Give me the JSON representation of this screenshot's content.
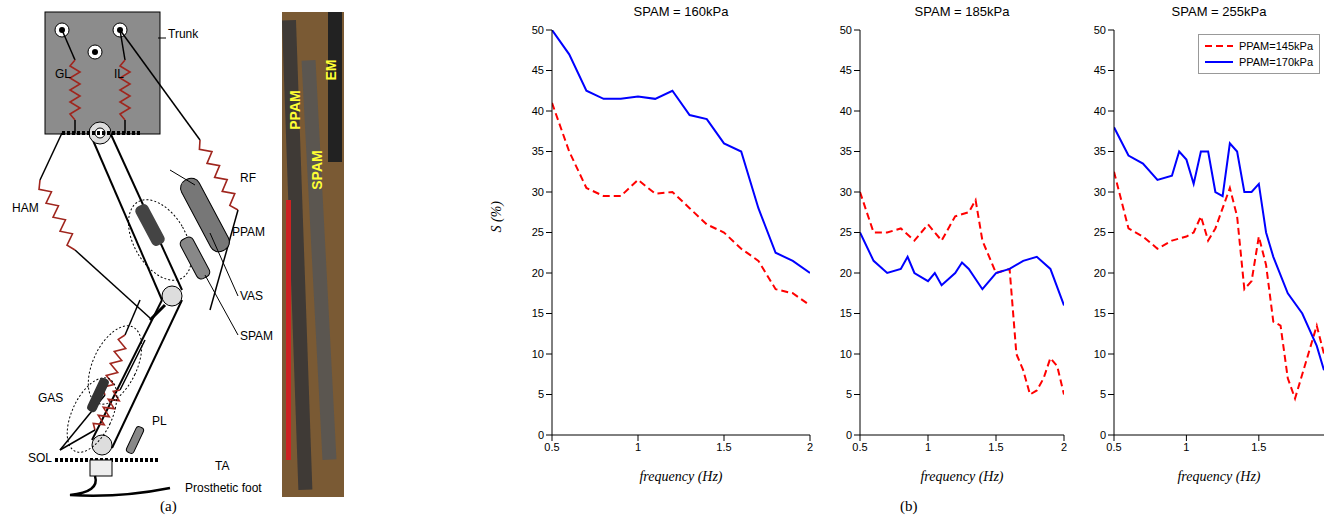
{
  "figure": {
    "panel_a_label": "(a)",
    "panel_b_label": "(b)"
  },
  "diagram": {
    "schematic_labels": [
      "Trunk",
      "GL",
      "IL",
      "RF",
      "HAM",
      "PPAM",
      "VAS",
      "SPAM",
      "GAS",
      "PL",
      "SOL",
      "TA",
      "Prosthetic foot"
    ],
    "photo_labels": [
      "PPAM",
      "SPAM",
      "EM"
    ]
  },
  "chart_data": [
    {
      "type": "line",
      "title": "SPAM = 160kPa",
      "xlabel": "frequency (Hz)",
      "ylabel": "S (%)",
      "xlim": [
        0.5,
        2
      ],
      "xticks": [
        0.5,
        1,
        1.5,
        2
      ],
      "ylim": [
        0,
        50
      ],
      "yticks": [
        0,
        5,
        10,
        15,
        20,
        25,
        30,
        35,
        40,
        45,
        50
      ],
      "grid": false,
      "series": [
        {
          "name": "PPAM=145kPa",
          "color": "#ff0000",
          "line_style": "dashed",
          "x": [
            0.5,
            0.6,
            0.7,
            0.8,
            0.9,
            1.0,
            1.1,
            1.2,
            1.3,
            1.4,
            1.5,
            1.6,
            1.7,
            1.8,
            1.9,
            2.0
          ],
          "values": [
            41,
            35,
            30.5,
            29.5,
            29.5,
            31.5,
            29.8,
            30,
            28,
            26,
            25,
            23,
            21.5,
            18,
            17.5,
            16
          ]
        },
        {
          "name": "PPAM=170kPa",
          "color": "#0000ff",
          "line_style": "solid",
          "x": [
            0.5,
            0.6,
            0.7,
            0.8,
            0.9,
            1.0,
            1.1,
            1.2,
            1.3,
            1.4,
            1.5,
            1.6,
            1.7,
            1.8,
            1.9,
            2.0
          ],
          "values": [
            50,
            47,
            42.5,
            41.5,
            41.5,
            41.8,
            41.5,
            42.5,
            39.5,
            39,
            36,
            35,
            28,
            22.5,
            21.5,
            20
          ]
        }
      ]
    },
    {
      "type": "line",
      "title": "SPAM = 185kPa",
      "xlabel": "frequency (Hz)",
      "xlim": [
        0.5,
        2
      ],
      "xticks": [
        0.5,
        1,
        1.5,
        2
      ],
      "ylim": [
        0,
        50
      ],
      "yticks": [
        0,
        5,
        10,
        15,
        20,
        25,
        30,
        35,
        40,
        45,
        50
      ],
      "grid": false,
      "series": [
        {
          "name": "PPAM=145kPa",
          "color": "#ff0000",
          "line_style": "dashed",
          "x": [
            0.5,
            0.6,
            0.7,
            0.8,
            0.9,
            1.0,
            1.1,
            1.2,
            1.3,
            1.35,
            1.4,
            1.5,
            1.6,
            1.65,
            1.7,
            1.75,
            1.8,
            1.85,
            1.9,
            1.95,
            2.0
          ],
          "values": [
            30,
            25,
            25,
            25.5,
            24,
            26,
            24,
            27,
            27.5,
            29,
            24,
            20,
            20.5,
            10,
            8,
            5,
            5.5,
            7,
            9.5,
            8.5,
            5
          ]
        },
        {
          "name": "PPAM=170kPa",
          "color": "#0000ff",
          "line_style": "solid",
          "x": [
            0.5,
            0.6,
            0.7,
            0.8,
            0.85,
            0.9,
            1.0,
            1.05,
            1.1,
            1.2,
            1.25,
            1.3,
            1.4,
            1.5,
            1.6,
            1.7,
            1.8,
            1.9,
            2.0
          ],
          "values": [
            25,
            21.5,
            20,
            20.5,
            22,
            20,
            19,
            20,
            18.5,
            20,
            21.3,
            20.5,
            18,
            20,
            20.5,
            21.5,
            22,
            20.5,
            16
          ]
        }
      ]
    },
    {
      "type": "line",
      "title": "SPAM = 255kPa",
      "xlabel": "frequency (Hz)",
      "xlim": [
        0.5,
        1.95
      ],
      "xticks": [
        0.5,
        1,
        1.5
      ],
      "ylim": [
        0,
        50
      ],
      "yticks": [
        0,
        5,
        10,
        15,
        20,
        25,
        30,
        35,
        40,
        45,
        50
      ],
      "grid": false,
      "legend": "upper right",
      "series": [
        {
          "name": "PPAM=145kPa",
          "color": "#ff0000",
          "line_style": "dashed",
          "x": [
            0.5,
            0.6,
            0.7,
            0.8,
            0.9,
            1.0,
            1.05,
            1.1,
            1.15,
            1.2,
            1.3,
            1.35,
            1.4,
            1.45,
            1.5,
            1.55,
            1.6,
            1.65,
            1.7,
            1.75,
            1.8,
            1.85,
            1.9,
            1.95
          ],
          "values": [
            32.5,
            25.5,
            24.5,
            23,
            24,
            24.5,
            25,
            27,
            24,
            25.5,
            30.5,
            27,
            18,
            19,
            24.5,
            21,
            14,
            13.5,
            7,
            4.5,
            7.5,
            10.5,
            13.5,
            10
          ]
        },
        {
          "name": "PPAM=170kPa",
          "color": "#0000ff",
          "line_style": "solid",
          "x": [
            0.5,
            0.6,
            0.7,
            0.8,
            0.9,
            0.95,
            1.0,
            1.05,
            1.1,
            1.15,
            1.2,
            1.25,
            1.3,
            1.35,
            1.4,
            1.45,
            1.5,
            1.55,
            1.6,
            1.7,
            1.8,
            1.9,
            1.95
          ],
          "values": [
            38,
            34.5,
            33.5,
            31.5,
            32,
            35,
            34,
            31,
            35,
            35,
            30,
            29.5,
            36,
            35,
            30,
            30,
            31,
            25,
            22,
            17.5,
            15,
            11,
            8
          ]
        }
      ]
    }
  ]
}
